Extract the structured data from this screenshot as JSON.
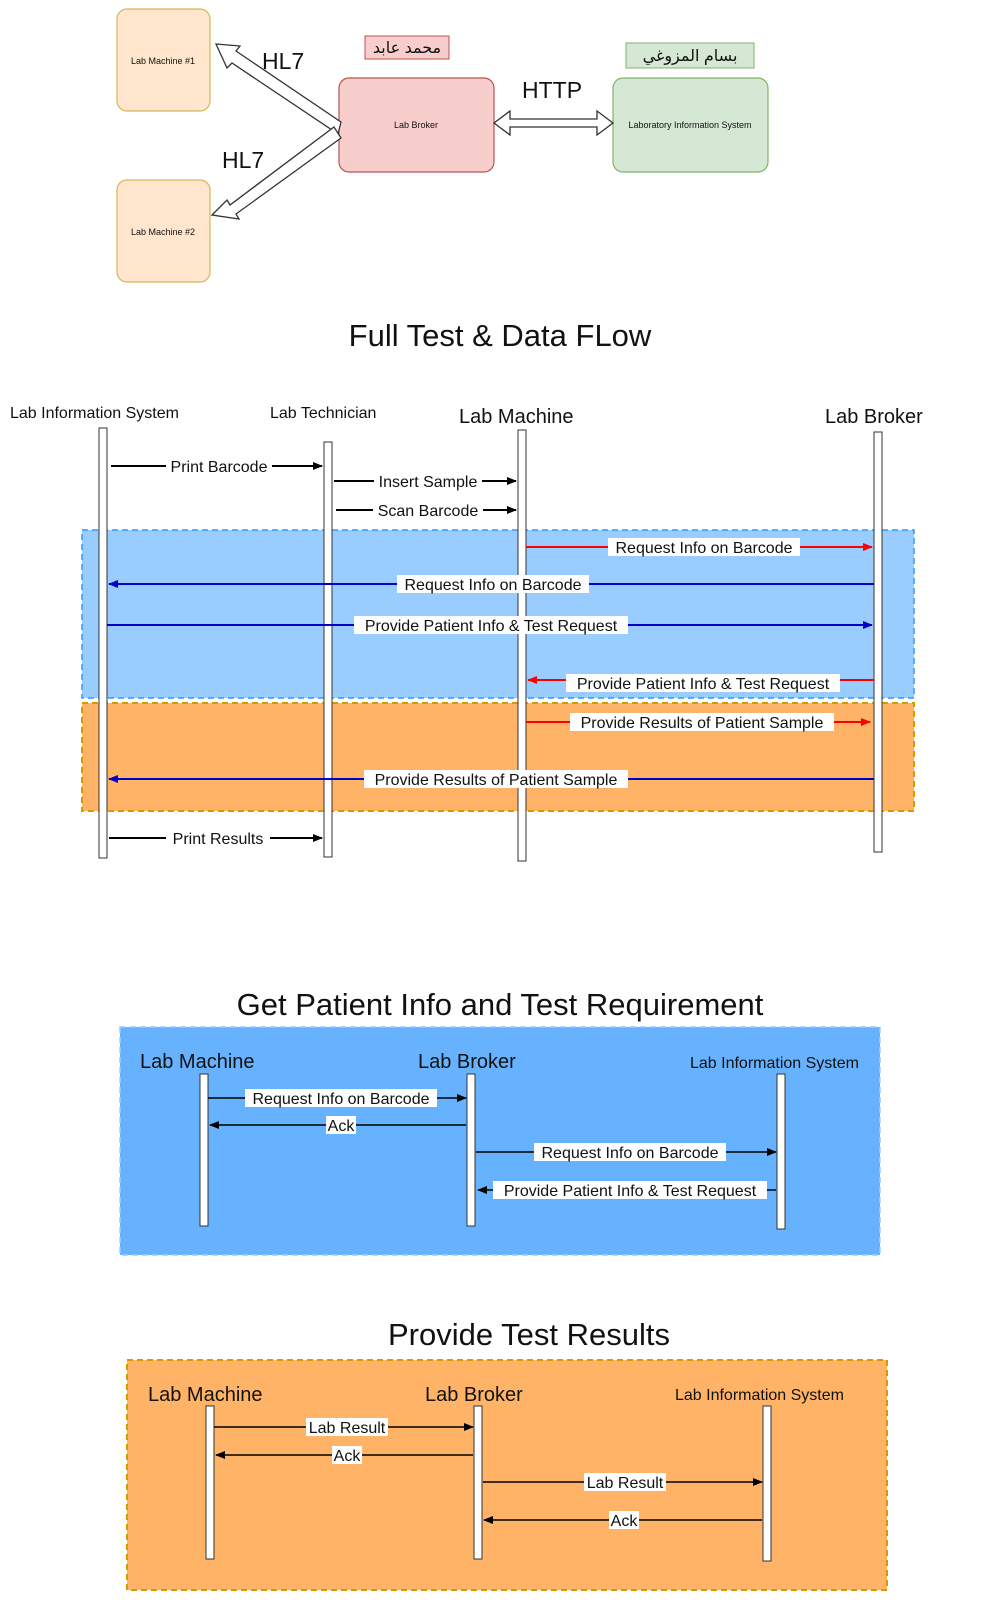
{
  "architecture": {
    "machine1": "Lab Machine #1",
    "machine2": "Lab Machine #2",
    "broker": "Lab Broker",
    "lis": "Laboratory Information System",
    "hl7_top": "HL7",
    "hl7_bottom": "HL7",
    "http": "HTTP",
    "tag_broker": "محمد عابد",
    "tag_lis": "بسام المزوغي"
  },
  "full_flow": {
    "title": "Full Test & Data FLow",
    "actors": [
      "Lab Information System",
      "Lab Technician",
      "Lab Machine",
      "Lab Broker"
    ],
    "messages": [
      "Print Barcode",
      "Insert Sample",
      "Scan Barcode",
      "Request Info on Barcode",
      "Request Info on Barcode",
      "Provide Patient Info & Test Request",
      "Provide Patient Info & Test Request",
      "Provide Results of Patient Sample",
      "Provide Results of Patient Sample",
      "Print Results"
    ]
  },
  "patient_info": {
    "title": "Get Patient Info and Test Requirement",
    "actors": [
      "Lab Machine",
      "Lab Broker",
      "Lab Information System"
    ],
    "messages": [
      "Request Info on Barcode",
      "Ack",
      "Request Info on Barcode",
      "Provide Patient Info & Test Request"
    ]
  },
  "test_results": {
    "title": "Provide Test Results",
    "actors": [
      "Lab Machine",
      "Lab Broker",
      "Lab Information System"
    ],
    "messages": [
      "Lab Result",
      "Ack",
      "Lab Result",
      "Ack"
    ]
  },
  "colors": {
    "machine_fill": "#ffe6cc",
    "machine_stroke": "#d6b656",
    "broker_fill": "#f8cecc",
    "broker_stroke": "#b85450",
    "lis_fill": "#d5e8d4",
    "lis_stroke": "#82b366",
    "blue_region": "#99ccff",
    "orange_region": "#ffb366",
    "blue_box": "#66b2ff",
    "red_arrow": "#ff0000",
    "blue_arrow": "#0000cc"
  }
}
